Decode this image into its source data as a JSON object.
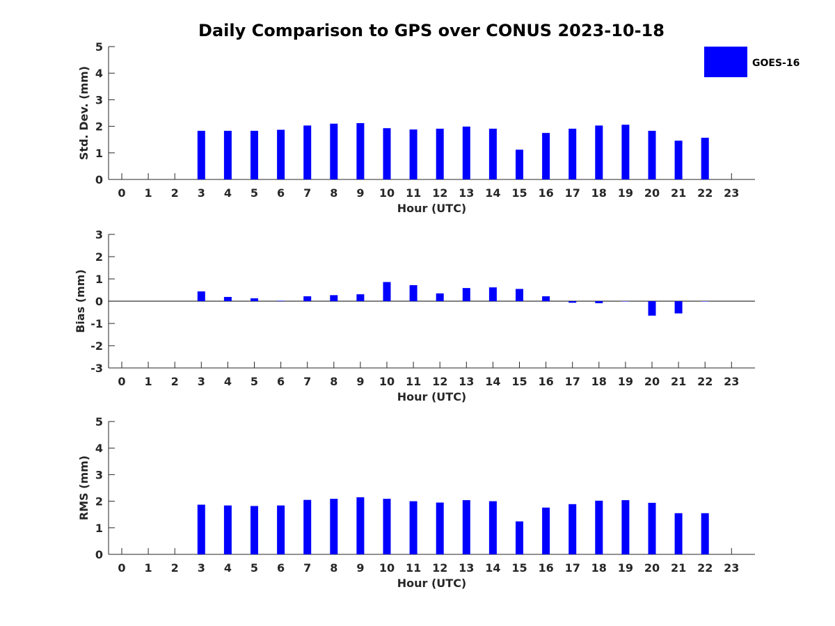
{
  "title": "Daily Comparison to GPS over CONUS 2023-10-18",
  "colors": {
    "bar": "#0000ff",
    "axis": "#262626",
    "background": "#ffffff"
  },
  "legend": {
    "label": "GOES-16",
    "placement": "top-right"
  },
  "chart_data": [
    {
      "type": "bar",
      "name": "std-dev",
      "x": [
        0,
        1,
        2,
        3,
        4,
        5,
        6,
        7,
        8,
        9,
        10,
        11,
        12,
        13,
        14,
        15,
        16,
        17,
        18,
        19,
        20,
        21,
        22,
        23
      ],
      "xlabel": "Hour (UTC)",
      "ylabel": "Std. Dev. (mm)",
      "ylim": [
        0,
        5
      ],
      "yticks": [
        0,
        1,
        2,
        3,
        4,
        5
      ],
      "series": [
        {
          "name": "GOES-16",
          "values": [
            null,
            null,
            null,
            1.83,
            1.83,
            1.83,
            1.87,
            2.03,
            2.1,
            2.12,
            1.93,
            1.88,
            1.91,
            1.99,
            1.91,
            1.12,
            1.75,
            1.91,
            2.03,
            2.06,
            1.83,
            1.46,
            1.57,
            null
          ]
        }
      ]
    },
    {
      "type": "bar",
      "name": "bias",
      "x": [
        0,
        1,
        2,
        3,
        4,
        5,
        6,
        7,
        8,
        9,
        10,
        11,
        12,
        13,
        14,
        15,
        16,
        17,
        18,
        19,
        20,
        21,
        22,
        23
      ],
      "xlabel": "Hour (UTC)",
      "ylabel": "Bias (mm)",
      "ylim": [
        -3,
        3
      ],
      "yticks": [
        -3,
        -2,
        -1,
        0,
        1,
        2,
        3
      ],
      "series": [
        {
          "name": "GOES-16",
          "values": [
            null,
            null,
            null,
            0.44,
            0.19,
            0.13,
            0.02,
            0.22,
            0.27,
            0.31,
            0.86,
            0.72,
            0.35,
            0.59,
            0.62,
            0.55,
            0.22,
            -0.07,
            -0.09,
            0.0,
            -0.65,
            -0.55,
            0.0,
            null
          ]
        }
      ]
    },
    {
      "type": "bar",
      "name": "rms",
      "x": [
        0,
        1,
        2,
        3,
        4,
        5,
        6,
        7,
        8,
        9,
        10,
        11,
        12,
        13,
        14,
        15,
        16,
        17,
        18,
        19,
        20,
        21,
        22,
        23
      ],
      "xlabel": "Hour (UTC)",
      "ylabel": "RMS (mm)",
      "ylim": [
        0,
        5
      ],
      "yticks": [
        0,
        1,
        2,
        3,
        4,
        5
      ],
      "series": [
        {
          "name": "GOES-16",
          "values": [
            null,
            null,
            null,
            1.87,
            1.84,
            1.82,
            1.84,
            2.05,
            2.09,
            2.15,
            2.09,
            2.0,
            1.95,
            2.04,
            2.0,
            1.24,
            1.76,
            1.89,
            2.02,
            2.04,
            1.94,
            1.55,
            1.55,
            null
          ]
        }
      ]
    }
  ]
}
